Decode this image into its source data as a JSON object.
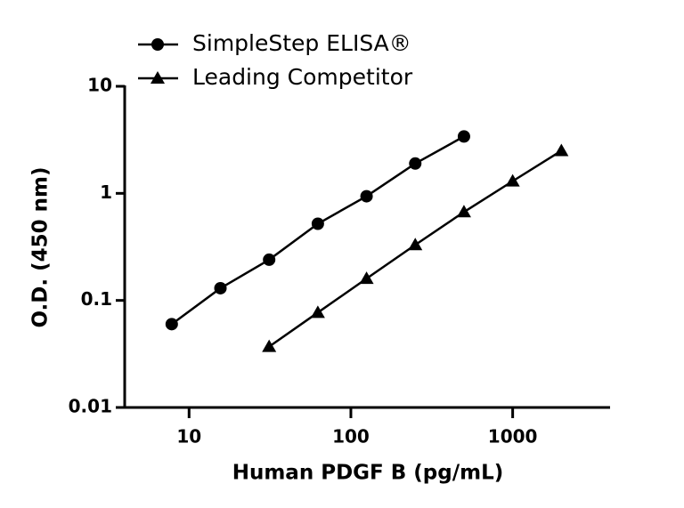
{
  "chart_data": {
    "type": "scatter",
    "x_label": "Human PDGF B (pg/mL)",
    "y_label": "O.D. (450 nm)",
    "xscale": "log",
    "yscale": "log",
    "xlim": [
      4,
      4000
    ],
    "xticks": [
      10,
      100,
      1000
    ],
    "ylim": [
      0.01,
      10
    ],
    "yticks": [
      0.01,
      0.1,
      1,
      10
    ],
    "legend": "top-left",
    "series": [
      {
        "name": "SimpleStep ELISA®",
        "color": "#000000",
        "marker": "circle",
        "x": [
          7.8125,
          15.625,
          31.25,
          62.5,
          125,
          250,
          500
        ],
        "values": [
          0.06,
          0.13,
          0.24,
          0.52,
          0.94,
          1.9,
          3.4
        ]
      },
      {
        "name": "Leading Competitor",
        "color": "#000000",
        "marker": "triangle",
        "x": [
          31.25,
          62.5,
          125,
          250,
          500,
          1000,
          2000
        ],
        "values": [
          0.037,
          0.077,
          0.16,
          0.33,
          0.67,
          1.3,
          2.5
        ]
      }
    ]
  }
}
